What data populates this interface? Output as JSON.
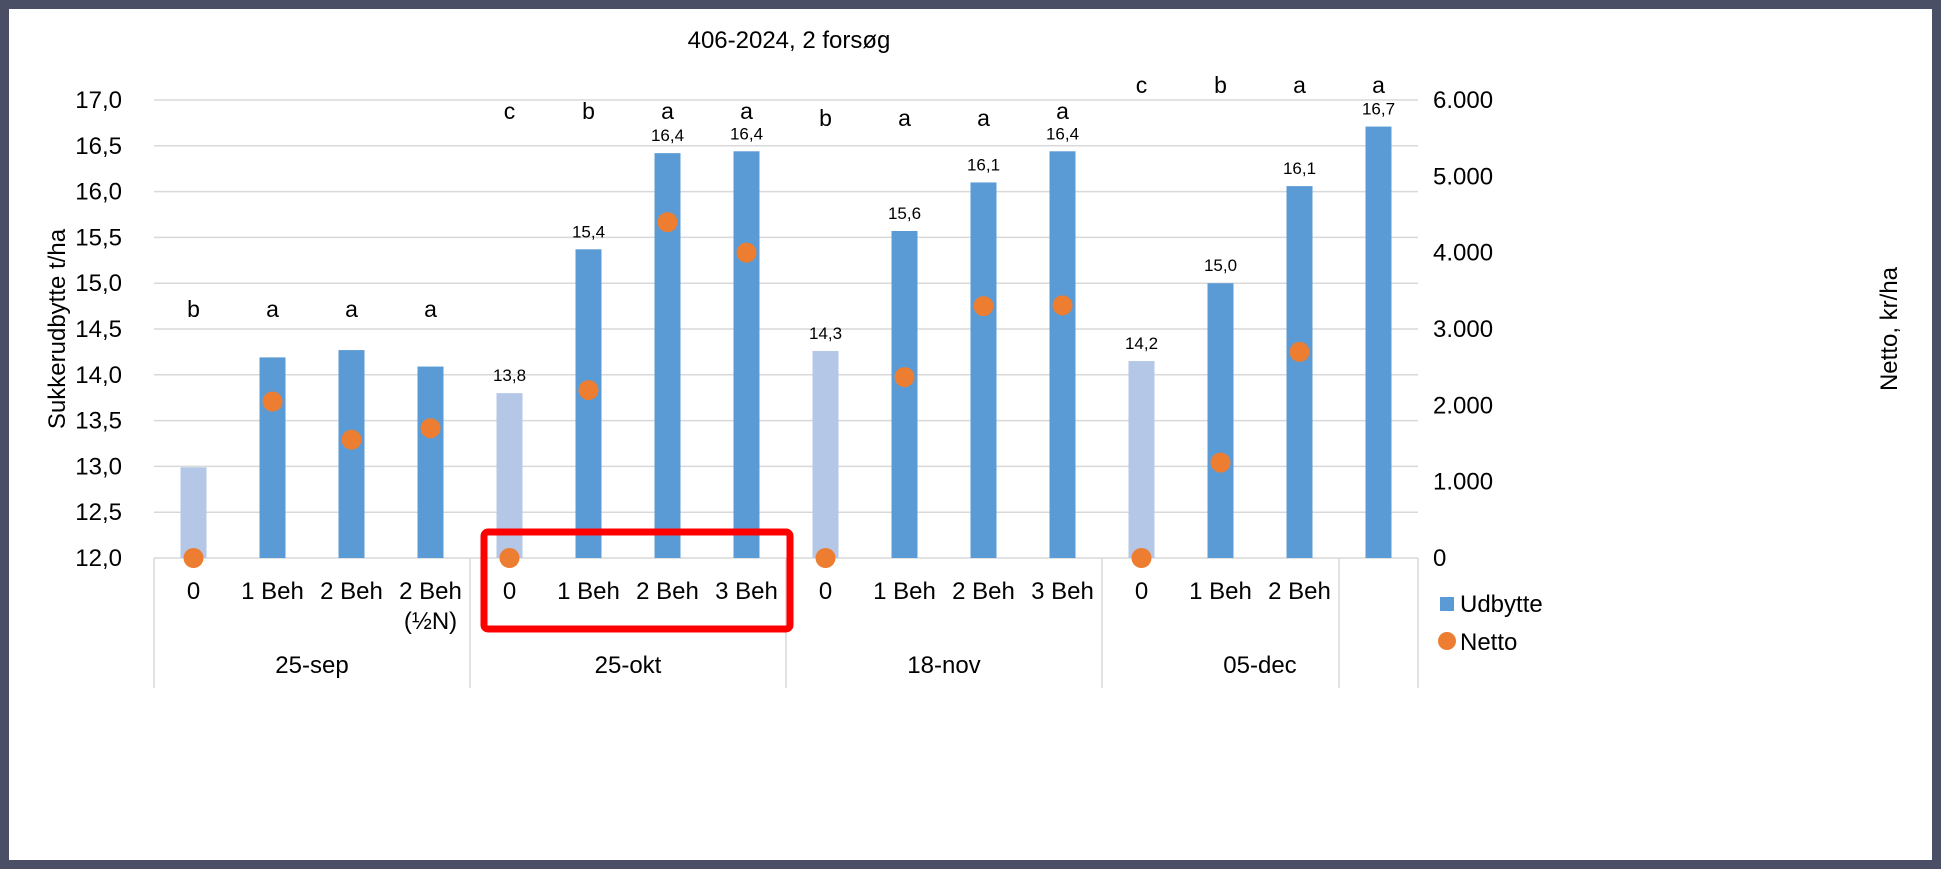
{
  "chart_data": {
    "type": "bar",
    "title": "406-2024, 2 forsøg",
    "ylabel": "Sukkerudbytte t/ha",
    "y2label": "Netto, kr/ha",
    "ylim": [
      12.0,
      17.0
    ],
    "y2lim": [
      0,
      6000
    ],
    "yticks": [
      "12,0",
      "12,5",
      "13,0",
      "13,5",
      "14,0",
      "14,5",
      "15,0",
      "15,5",
      "16,0",
      "16,5",
      "17,0"
    ],
    "y2ticks": [
      "0",
      "1.000",
      "2.000",
      "3.000",
      "4.000",
      "5.000",
      "6.000"
    ],
    "groups": [
      {
        "name": "25-sep",
        "categories": [
          "0",
          "1 Beh",
          "2 Beh",
          "2 Beh\n(½N)"
        ],
        "udbytte": [
          12.99,
          14.19,
          14.27,
          14.09
        ],
        "netto": [
          0,
          2050,
          1550,
          1700
        ],
        "value_labels": [
          "",
          "",
          "",
          ""
        ],
        "letters": [
          "b",
          "a",
          "a",
          "a"
        ]
      },
      {
        "name": "25-okt",
        "categories": [
          "0",
          "1 Beh",
          "2 Beh",
          "3 Beh"
        ],
        "udbytte": [
          13.8,
          15.37,
          16.42,
          16.44
        ],
        "netto": [
          0,
          2200,
          4400,
          4000
        ],
        "value_labels": [
          "13,8",
          "15,4",
          "16,4",
          "16,4"
        ],
        "letters": [
          "c",
          "b",
          "a",
          "a"
        ]
      },
      {
        "name": "18-nov",
        "categories": [
          "0",
          "1 Beh",
          "2 Beh",
          "3 Beh"
        ],
        "udbytte": [
          14.26,
          15.57,
          16.1,
          16.44
        ],
        "netto": [
          0,
          2370,
          3300,
          3310
        ],
        "value_labels": [
          "14,3",
          "15,6",
          "16,1",
          "16,4"
        ],
        "letters": [
          "b",
          "a",
          "a",
          "a"
        ]
      },
      {
        "name": "05-dec",
        "categories": [
          "0",
          "1 Beh",
          "2 Beh",
          ""
        ],
        "udbytte": [
          14.15,
          15.0,
          16.06,
          16.71
        ],
        "netto": [
          0,
          1250,
          2700,
          null
        ],
        "value_labels": [
          "14,2",
          "15,0",
          "16,1",
          "16,7"
        ],
        "letters": [
          "c",
          "b",
          "a",
          "a"
        ]
      }
    ],
    "series": [
      {
        "name": "Udbytte",
        "type": "bar",
        "color": "#5b9bd5",
        "control_color": "#b4c7e7"
      },
      {
        "name": "Netto",
        "type": "scatter",
        "color": "#ed7d31"
      }
    ],
    "highlight": {
      "group": "25-okt",
      "color": "#ff0000"
    },
    "legend_position": "right",
    "grid": true
  }
}
